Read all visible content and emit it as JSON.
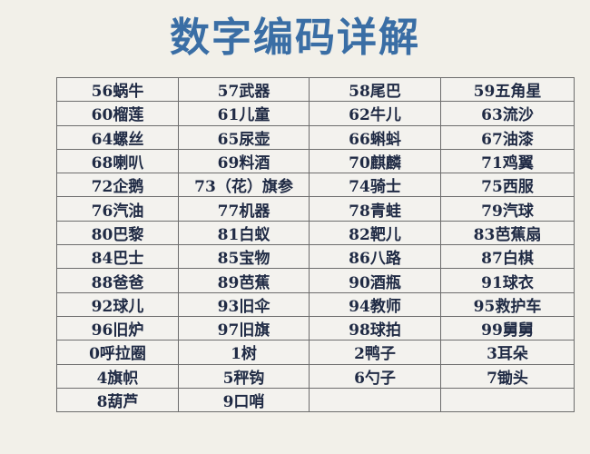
{
  "title": "数字编码详解",
  "rows": [
    [
      "56蜗牛",
      "57武器",
      "58尾巴",
      "59五角星"
    ],
    [
      "60榴莲",
      "61儿童",
      "62牛儿",
      "63流沙"
    ],
    [
      "64螺丝",
      "65尿壶",
      "66蝌蚪",
      "67油漆"
    ],
    [
      "68喇叭",
      "69料酒",
      "70麒麟",
      "71鸡翼"
    ],
    [
      "72企鹅",
      "73（花）旗参",
      "74骑士",
      "75西服"
    ],
    [
      "76汽油",
      "77机器",
      "78青蛙",
      "79汽球"
    ],
    [
      "80巴黎",
      "81白蚁",
      "82靶儿",
      "83芭蕉扇"
    ],
    [
      "84巴士",
      "85宝物",
      "86八路",
      "87白棋"
    ],
    [
      "88爸爸",
      "89芭蕉",
      "90酒瓶",
      "91球衣"
    ],
    [
      "92球儿",
      "93旧伞",
      "94教师",
      "95救护车"
    ],
    [
      "96旧炉",
      "97旧旗",
      "98球拍",
      "99舅舅"
    ],
    [
      "0呼拉圈",
      "1树",
      "2鸭子",
      "3耳朵"
    ],
    [
      "4旗帜",
      "5秤钩",
      "6勺子",
      "7锄头"
    ],
    [
      "8葫芦",
      "9口哨",
      "",
      ""
    ]
  ]
}
